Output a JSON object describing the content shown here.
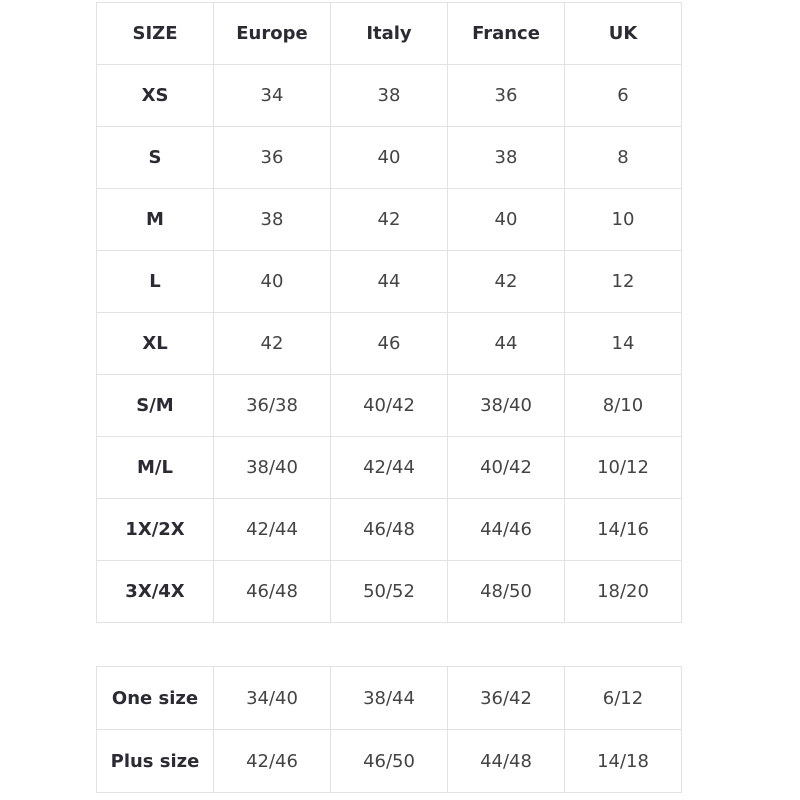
{
  "headers": [
    "SIZE",
    "Europe",
    "Italy",
    "France",
    "UK"
  ],
  "rows": [
    [
      "XS",
      "34",
      "38",
      "36",
      "6"
    ],
    [
      "S",
      "36",
      "40",
      "38",
      "8"
    ],
    [
      "M",
      "38",
      "42",
      "40",
      "10"
    ],
    [
      "L",
      "40",
      "44",
      "42",
      "12"
    ],
    [
      "XL",
      "42",
      "46",
      "44",
      "14"
    ],
    [
      "S/M",
      "36/38",
      "40/42",
      "38/40",
      "8/10"
    ],
    [
      "M/L",
      "38/40",
      "42/44",
      "40/42",
      "10/12"
    ],
    [
      "1X/2X",
      "42/44",
      "46/48",
      "44/46",
      "14/16"
    ],
    [
      "3X/4X",
      "46/48",
      "50/52",
      "48/50",
      "18/20"
    ]
  ],
  "extra_rows": [
    [
      "One size",
      "34/40",
      "38/44",
      "36/42",
      "6/12"
    ],
    [
      "Plus size",
      "42/46",
      "46/50",
      "44/48",
      "14/18"
    ]
  ]
}
